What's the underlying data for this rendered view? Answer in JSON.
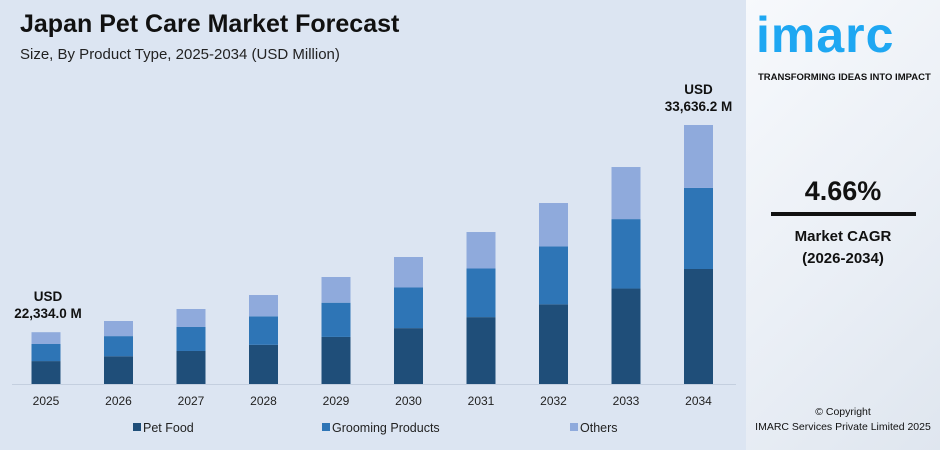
{
  "title": "Japan Pet Care Market Forecast",
  "subtitle": "Size, By Product Type, 2025-2034 (USD Million)",
  "brand": {
    "logo": "imarc",
    "tagline": "TRANSFORMING IDEAS INTO IMPACT",
    "color": "#1ea7f2"
  },
  "cagr": {
    "value": "4.66%",
    "label": "Market CAGR",
    "period": "(2026-2034)"
  },
  "copyright": {
    "line1": "© Copyright",
    "line2": "IMARC Services Private Limited 2025"
  },
  "chart_data": {
    "type": "bar",
    "stacked": true,
    "categories": [
      "2025",
      "2026",
      "2027",
      "2028",
      "2029",
      "2030",
      "2031",
      "2032",
      "2033",
      "2034"
    ],
    "series": [
      {
        "name": "Pet Food",
        "color": "#1f4e79",
        "values": [
          9880,
          10100,
          10390,
          10720,
          11150,
          11630,
          12230,
          12930,
          13790,
          14935
        ]
      },
      {
        "name": "Grooming Products",
        "color": "#2e75b6",
        "values": [
          7370,
          7340,
          7550,
          7800,
          8110,
          8460,
          8900,
          9400,
          10030,
          10527
        ]
      },
      {
        "name": "Others",
        "color": "#8faadc",
        "values": [
          5084,
          5505,
          5660,
          5843,
          6085,
          6346,
          6669,
          7051,
          7524,
          8174.2
        ]
      }
    ],
    "annotations": [
      {
        "category": "2025",
        "text1": "USD",
        "text2": "22,334.0 M"
      },
      {
        "category": "2034",
        "text1": "USD",
        "text2": "33,636.2 M"
      }
    ],
    "legend_position": "bottom",
    "grid": false,
    "unit": "USD Million"
  }
}
